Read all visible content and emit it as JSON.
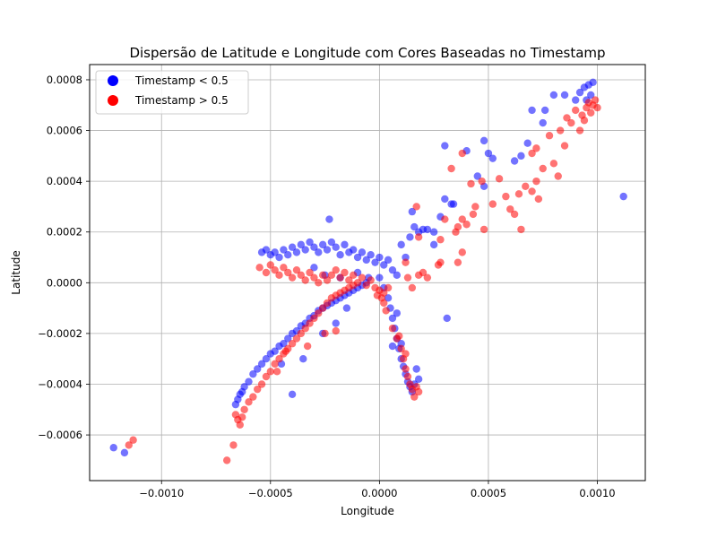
{
  "chart_data": {
    "type": "scatter",
    "title": "Dispersão de Latitude e Longitude com Cores Baseadas no Timestamp",
    "xlabel": "Longitude",
    "ylabel": "Latitude",
    "xlim": [
      -0.00133,
      0.00122
    ],
    "ylim": [
      -0.00078,
      0.00086
    ],
    "xticks": [
      -0.001,
      -0.0005,
      0.0,
      0.0005,
      0.001
    ],
    "xtick_labels": [
      "−0.0010",
      "−0.0005",
      "0.0000",
      "0.0005",
      "0.0010"
    ],
    "yticks": [
      -0.0006,
      -0.0004,
      -0.0002,
      0.0,
      0.0002,
      0.0004,
      0.0006,
      0.0008
    ],
    "ytick_labels": [
      "−0.0006",
      "−0.0004",
      "−0.0002",
      "0.0000",
      "0.0002",
      "0.0004",
      "0.0006",
      "0.0008"
    ],
    "grid": true,
    "legend_position": "top-left",
    "series": [
      {
        "name": "Timestamp < 0.5",
        "color": "#0000ff",
        "points": [
          [
            -0.00122,
            -0.00065
          ],
          [
            -0.00117,
            -0.00067
          ],
          [
            -0.00066,
            -0.00048
          ],
          [
            -0.00065,
            -0.00046
          ],
          [
            -0.00064,
            -0.00044
          ],
          [
            -0.00063,
            -0.00043
          ],
          [
            -0.00062,
            -0.00041
          ],
          [
            -0.0006,
            -0.00039
          ],
          [
            -0.00058,
            -0.00036
          ],
          [
            -0.00056,
            -0.00034
          ],
          [
            -0.00054,
            -0.00032
          ],
          [
            -0.00052,
            -0.0003
          ],
          [
            -0.0005,
            -0.00028
          ],
          [
            -0.00048,
            -0.00027
          ],
          [
            -0.00046,
            -0.00025
          ],
          [
            -0.00044,
            -0.00024
          ],
          [
            -0.00042,
            -0.00022
          ],
          [
            -0.0004,
            -0.0002
          ],
          [
            -0.00038,
            -0.00019
          ],
          [
            -0.00036,
            -0.00017
          ],
          [
            -0.00034,
            -0.00016
          ],
          [
            -0.00032,
            -0.00014
          ],
          [
            -0.0003,
            -0.00013
          ],
          [
            -0.00028,
            -0.00011
          ],
          [
            -0.00026,
            -0.0001
          ],
          [
            -0.00024,
            -9e-05
          ],
          [
            -0.00022,
            -8e-05
          ],
          [
            -0.0002,
            -7e-05
          ],
          [
            -0.00018,
            -6e-05
          ],
          [
            -0.00016,
            -5e-05
          ],
          [
            -0.00014,
            -4e-05
          ],
          [
            -0.00012,
            -3e-05
          ],
          [
            -0.0001,
            -2e-05
          ],
          [
            -8e-05,
            -1e-05
          ],
          [
            -6e-05,
            0.0
          ],
          [
            -0.0004,
            -0.00044
          ],
          [
            -0.00035,
            -0.0003
          ],
          [
            -0.00045,
            -0.00032
          ],
          [
            -0.00026,
            -0.0002
          ],
          [
            -0.0002,
            -0.00016
          ],
          [
            -0.00015,
            -0.0001
          ],
          [
            -0.00054,
            0.00012
          ],
          [
            -0.00052,
            0.00013
          ],
          [
            -0.0005,
            0.00011
          ],
          [
            -0.00048,
            0.00012
          ],
          [
            -0.00046,
            0.0001
          ],
          [
            -0.00044,
            0.00013
          ],
          [
            -0.00042,
            0.00011
          ],
          [
            -0.0004,
            0.00014
          ],
          [
            -0.00038,
            0.00012
          ],
          [
            -0.00036,
            0.00015
          ],
          [
            -0.00034,
            0.00013
          ],
          [
            -0.00032,
            0.00016
          ],
          [
            -0.0003,
            0.00014
          ],
          [
            -0.00028,
            0.00012
          ],
          [
            -0.00026,
            0.00015
          ],
          [
            -0.00024,
            0.00013
          ],
          [
            -0.00022,
            0.00016
          ],
          [
            -0.0002,
            0.00014
          ],
          [
            -0.00018,
            0.00011
          ],
          [
            -0.00016,
            0.00015
          ],
          [
            -0.00014,
            0.00012
          ],
          [
            -0.00012,
            0.00013
          ],
          [
            -0.0001,
            0.0001
          ],
          [
            -8e-05,
            0.00012
          ],
          [
            -6e-05,
            9e-05
          ],
          [
            -4e-05,
            0.00011
          ],
          [
            -2e-05,
            8e-05
          ],
          [
            0.0,
            0.0001
          ],
          [
            2e-05,
            7e-05
          ],
          [
            4e-05,
            9e-05
          ],
          [
            6e-05,
            5e-05
          ],
          [
            8e-05,
            3e-05
          ],
          [
            -0.00023,
            0.00025
          ],
          [
            -0.0003,
            6e-05
          ],
          [
            -0.00025,
            3e-05
          ],
          [
            -0.00018,
            2e-05
          ],
          [
            -0.0001,
            4e-05
          ],
          [
            -5e-05,
            2e-05
          ],
          [
            0.0,
            2e-05
          ],
          [
            2e-05,
            -2e-05
          ],
          [
            4e-05,
            -6e-05
          ],
          [
            5e-05,
            -0.0001
          ],
          [
            6e-05,
            -0.00014
          ],
          [
            7e-05,
            -0.00018
          ],
          [
            8e-05,
            -0.00022
          ],
          [
            9e-05,
            -0.00026
          ],
          [
            0.0001,
            -0.0003
          ],
          [
            0.00011,
            -0.00033
          ],
          [
            0.00012,
            -0.00036
          ],
          [
            0.00013,
            -0.00039
          ],
          [
            0.00014,
            -0.00041
          ],
          [
            0.00015,
            -0.00043
          ],
          [
            0.00016,
            -0.0004
          ],
          [
            0.00017,
            -0.00034
          ],
          [
            0.0001,
            -0.00024
          ],
          [
            8e-05,
            -0.00012
          ],
          [
            6e-05,
            -0.00025
          ],
          [
            0.00018,
            -0.00038
          ],
          [
            0.0001,
            0.00015
          ],
          [
            0.00012,
            0.0001
          ],
          [
            0.00014,
            0.00018
          ],
          [
            0.00016,
            0.00022
          ],
          [
            0.00018,
            0.0002
          ],
          [
            0.0002,
            0.00021
          ],
          [
            0.00022,
            0.00021
          ],
          [
            0.00025,
            0.00015
          ],
          [
            0.00028,
            0.00026
          ],
          [
            0.0003,
            0.00033
          ],
          [
            0.00033,
            0.00031
          ],
          [
            0.00034,
            0.00031
          ],
          [
            0.00025,
            0.0002
          ],
          [
            0.00015,
            0.00028
          ],
          [
            0.00031,
            -0.00014
          ],
          [
            0.0003,
            0.00054
          ],
          [
            0.0004,
            0.00052
          ],
          [
            0.00048,
            0.00056
          ],
          [
            0.0005,
            0.00051
          ],
          [
            0.00045,
            0.00042
          ],
          [
            0.00048,
            0.00038
          ],
          [
            0.00052,
            0.00049
          ],
          [
            0.00062,
            0.00048
          ],
          [
            0.00065,
            0.0005
          ],
          [
            0.00068,
            0.00055
          ],
          [
            0.0007,
            0.00068
          ],
          [
            0.00075,
            0.00063
          ],
          [
            0.00076,
            0.00068
          ],
          [
            0.0008,
            0.00074
          ],
          [
            0.00085,
            0.00074
          ],
          [
            0.0009,
            0.00072
          ],
          [
            0.00092,
            0.00075
          ],
          [
            0.00094,
            0.00077
          ],
          [
            0.00096,
            0.00078
          ],
          [
            0.00098,
            0.00079
          ],
          [
            0.00097,
            0.00074
          ],
          [
            0.00095,
            0.00072
          ],
          [
            0.00112,
            0.00034
          ]
        ]
      },
      {
        "name": "Timestamp > 0.5",
        "color": "#ff0000",
        "points": [
          [
            -0.00113,
            -0.00062
          ],
          [
            -0.00115,
            -0.00064
          ],
          [
            -0.0007,
            -0.0007
          ],
          [
            -0.00067,
            -0.00064
          ],
          [
            -0.00066,
            -0.00052
          ],
          [
            -0.00065,
            -0.00054
          ],
          [
            -0.00064,
            -0.00056
          ],
          [
            -0.00063,
            -0.00053
          ],
          [
            -0.00062,
            -0.0005
          ],
          [
            -0.0006,
            -0.00047
          ],
          [
            -0.00058,
            -0.00045
          ],
          [
            -0.00056,
            -0.00042
          ],
          [
            -0.00054,
            -0.0004
          ],
          [
            -0.00052,
            -0.00037
          ],
          [
            -0.0005,
            -0.00035
          ],
          [
            -0.00048,
            -0.00032
          ],
          [
            -0.00046,
            -0.0003
          ],
          [
            -0.00044,
            -0.00028
          ],
          [
            -0.00042,
            -0.00026
          ],
          [
            -0.0004,
            -0.00024
          ],
          [
            -0.00038,
            -0.00022
          ],
          [
            -0.00036,
            -0.0002
          ],
          [
            -0.00034,
            -0.00018
          ],
          [
            -0.00032,
            -0.00016
          ],
          [
            -0.0003,
            -0.00014
          ],
          [
            -0.00028,
            -0.00012
          ],
          [
            -0.00026,
            -0.0001
          ],
          [
            -0.00024,
            -8e-05
          ],
          [
            -0.00022,
            -6e-05
          ],
          [
            -0.0002,
            -5e-05
          ],
          [
            -0.00018,
            -4e-05
          ],
          [
            -0.00016,
            -3e-05
          ],
          [
            -0.00014,
            -2e-05
          ],
          [
            -0.00012,
            -1e-05
          ],
          [
            -0.00047,
            -0.00035
          ],
          [
            -0.00043,
            -0.00027
          ],
          [
            -0.00033,
            -0.00025
          ],
          [
            -0.00025,
            -0.0002
          ],
          [
            -0.0002,
            -0.00019
          ],
          [
            -0.00055,
            6e-05
          ],
          [
            -0.00052,
            4e-05
          ],
          [
            -0.0005,
            7e-05
          ],
          [
            -0.00048,
            5e-05
          ],
          [
            -0.00046,
            3e-05
          ],
          [
            -0.00044,
            6e-05
          ],
          [
            -0.00042,
            4e-05
          ],
          [
            -0.0004,
            2e-05
          ],
          [
            -0.00038,
            5e-05
          ],
          [
            -0.00036,
            3e-05
          ],
          [
            -0.00034,
            1e-05
          ],
          [
            -0.00032,
            4e-05
          ],
          [
            -0.0003,
            2e-05
          ],
          [
            -0.00028,
            0.0
          ],
          [
            -0.00026,
            3e-05
          ],
          [
            -0.00024,
            1e-05
          ],
          [
            -0.00022,
            3e-05
          ],
          [
            -0.0002,
            5e-05
          ],
          [
            -0.00018,
            2e-05
          ],
          [
            -0.00016,
            4e-05
          ],
          [
            -0.00014,
            1e-05
          ],
          [
            -0.00012,
            3e-05
          ],
          [
            -0.0001,
            0.0
          ],
          [
            -8e-05,
            2e-05
          ],
          [
            -6e-05,
            -1e-05
          ],
          [
            -4e-05,
            1e-05
          ],
          [
            -2e-05,
            -2e-05
          ],
          [
            0.0,
            -3e-05
          ],
          [
            1e-05,
            -6e-05
          ],
          [
            2e-05,
            -8e-05
          ],
          [
            3e-05,
            -0.00011
          ],
          [
            2e-05,
            -4e-05
          ],
          [
            -1e-05,
            -5e-05
          ],
          [
            4e-05,
            -2e-05
          ],
          [
            6e-05,
            -0.00018
          ],
          [
            8e-05,
            -0.00022
          ],
          [
            0.0001,
            -0.00026
          ],
          [
            0.00011,
            -0.0003
          ],
          [
            0.00012,
            -0.00034
          ],
          [
            0.00013,
            -0.00037
          ],
          [
            0.00014,
            -0.0004
          ],
          [
            0.00015,
            -0.00042
          ],
          [
            0.00016,
            -0.00045
          ],
          [
            0.00017,
            -0.00041
          ],
          [
            0.00018,
            -0.00043
          ],
          [
            0.00012,
            -0.00028
          ],
          [
            9e-05,
            -0.00021
          ],
          [
            0.00012,
            8e-05
          ],
          [
            0.00013,
            2e-05
          ],
          [
            0.00015,
            -2e-05
          ],
          [
            0.00018,
            3e-05
          ],
          [
            0.0002,
            4e-05
          ],
          [
            0.00022,
            2e-05
          ],
          [
            0.00018,
            0.00018
          ],
          [
            0.00017,
            0.0003
          ],
          [
            0.00028,
            8e-05
          ],
          [
            0.00028,
            0.00017
          ],
          [
            0.00027,
            7e-05
          ],
          [
            0.0003,
            0.00025
          ],
          [
            0.00035,
            0.0002
          ],
          [
            0.00036,
            0.00022
          ],
          [
            0.00038,
            0.00025
          ],
          [
            0.0004,
            0.00023
          ],
          [
            0.00043,
            0.00027
          ],
          [
            0.00044,
            0.0003
          ],
          [
            0.00038,
            0.00012
          ],
          [
            0.00036,
            8e-05
          ],
          [
            0.00033,
            0.00045
          ],
          [
            0.00038,
            0.00051
          ],
          [
            0.00042,
            0.00039
          ],
          [
            0.00047,
            0.0004
          ],
          [
            0.00048,
            0.00021
          ],
          [
            0.00052,
            0.00031
          ],
          [
            0.00055,
            0.00041
          ],
          [
            0.00058,
            0.00034
          ],
          [
            0.0006,
            0.00029
          ],
          [
            0.00062,
            0.00027
          ],
          [
            0.00064,
            0.00035
          ],
          [
            0.00065,
            0.00021
          ],
          [
            0.00067,
            0.00038
          ],
          [
            0.0007,
            0.00036
          ],
          [
            0.00072,
            0.0004
          ],
          [
            0.00073,
            0.00033
          ],
          [
            0.0007,
            0.00051
          ],
          [
            0.00072,
            0.00053
          ],
          [
            0.00075,
            0.00045
          ],
          [
            0.00078,
            0.00058
          ],
          [
            0.0008,
            0.00047
          ],
          [
            0.00082,
            0.00042
          ],
          [
            0.00083,
            0.0006
          ],
          [
            0.00085,
            0.00054
          ],
          [
            0.00086,
            0.00065
          ],
          [
            0.00088,
            0.00063
          ],
          [
            0.0009,
            0.00068
          ],
          [
            0.00092,
            0.0006
          ],
          [
            0.00093,
            0.00066
          ],
          [
            0.00095,
            0.00069
          ],
          [
            0.00096,
            0.00071
          ],
          [
            0.00097,
            0.00067
          ],
          [
            0.00098,
            0.0007
          ],
          [
            0.00099,
            0.00072
          ],
          [
            0.001,
            0.00069
          ],
          [
            0.00094,
            0.00064
          ]
        ]
      }
    ]
  }
}
